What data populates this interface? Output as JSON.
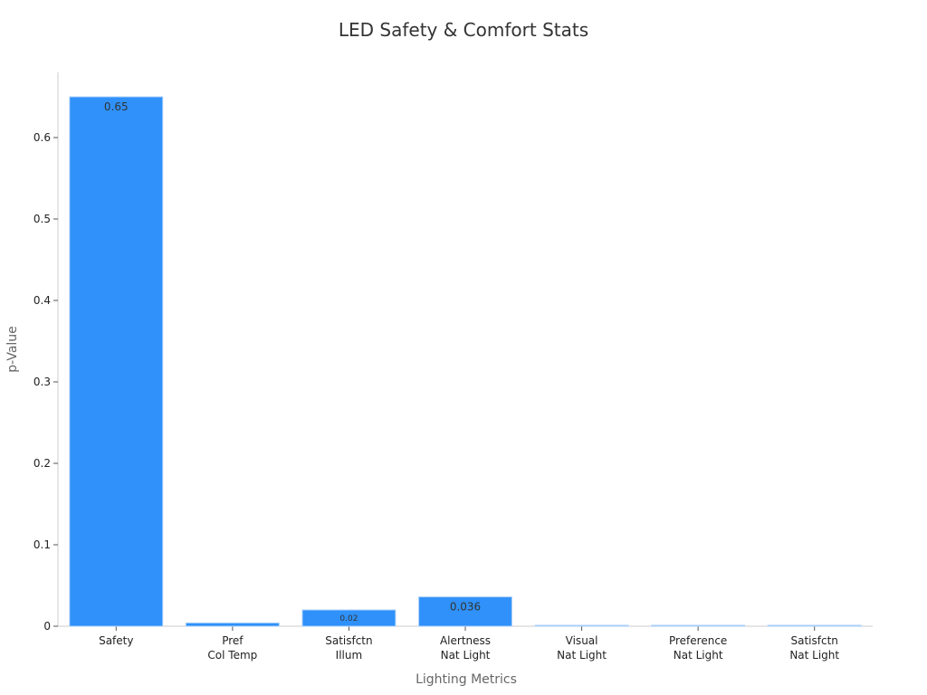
{
  "chart_data": {
    "type": "bar",
    "title": "LED Safety & Comfort Stats",
    "xlabel": "Lighting Metrics",
    "ylabel": "p-Value",
    "categories": [
      [
        "Safety"
      ],
      [
        "Pref",
        "Col Temp"
      ],
      [
        "Satisfctn",
        "Illum"
      ],
      [
        "Alertness",
        "Nat Light"
      ],
      [
        "Visual",
        "Nat Light"
      ],
      [
        "Preference",
        "Nat Light"
      ],
      [
        "Satisfctn",
        "Nat Light"
      ]
    ],
    "values": [
      0.65,
      0.004,
      0.02,
      0.036,
      0.001,
      0.001,
      0.001
    ],
    "data_labels": [
      "0.65",
      "",
      "0.02",
      "0.036",
      "",
      "",
      ""
    ],
    "ylim": [
      0,
      0.68
    ],
    "yticks": [
      0,
      0.1,
      0.2,
      0.3,
      0.4,
      0.5,
      0.6
    ],
    "ytick_labels": [
      "0",
      "0.1",
      "0.2",
      "0.3",
      "0.4",
      "0.5",
      "0.6"
    ],
    "grid": false,
    "bar_color": "#2f91f9",
    "bar_edge_color": "#a9cffa"
  }
}
